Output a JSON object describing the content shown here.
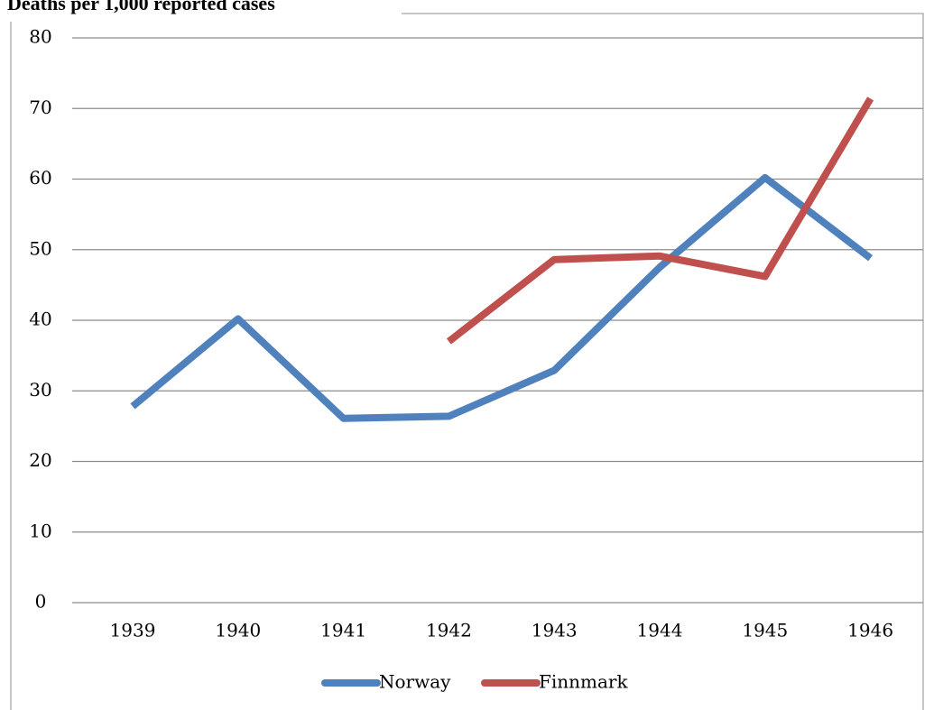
{
  "chart_data": {
    "type": "line",
    "title": "Deaths per 1,000 reported cases",
    "categories": [
      "1939",
      "1940",
      "1941",
      "1942",
      "1943",
      "1944",
      "1945",
      "1946"
    ],
    "series": [
      {
        "name": "Norway",
        "color": "#4f81bd",
        "values": [
          27.8,
          40.2,
          26.1,
          26.4,
          32.9,
          47.5,
          60.2,
          48.8
        ]
      },
      {
        "name": "Finnmark",
        "color": "#c0504d",
        "values": [
          null,
          null,
          null,
          37.0,
          48.6,
          49.1,
          46.2,
          71.4
        ]
      }
    ],
    "ylim": [
      0,
      80
    ],
    "yticks": [
      0,
      10,
      20,
      30,
      40,
      50,
      60,
      70,
      80
    ],
    "grid": true,
    "legend": "bottom"
  }
}
